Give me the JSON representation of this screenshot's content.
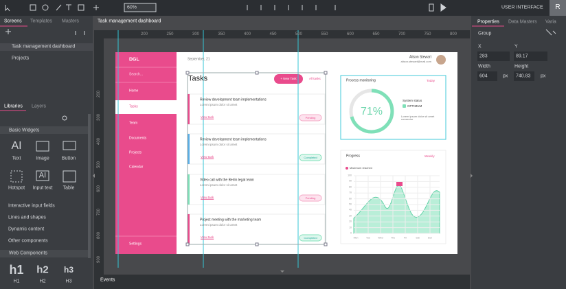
{
  "toolbar": {
    "zoom": "60%",
    "mode": "USER INTERFACE",
    "user_initial": "R"
  },
  "left_panel": {
    "tabs": [
      "Screens",
      "Templates",
      "Masters"
    ],
    "screens": [
      "Task management dashboard",
      "Projects"
    ],
    "library_tabs": [
      "Libraries",
      "Layers"
    ],
    "basic_widgets": {
      "title": "Basic Widgets",
      "items": [
        "Text",
        "Image",
        "Button",
        "Hotspot",
        "Input text",
        "Table"
      ]
    },
    "sections": [
      "Interactive input fields",
      "Lines and shapes",
      "Dynamic content",
      "Other components"
    ],
    "web_components": {
      "title": "Web Components",
      "icons": [
        "h1",
        "h2",
        "h3"
      ],
      "items": [
        "H1",
        "H2",
        "H3"
      ]
    }
  },
  "canvas": {
    "tab": "Task management dashboard",
    "ruler_top": [
      "200",
      "250",
      "300",
      "350",
      "400",
      "450",
      "500",
      "550",
      "600",
      "650",
      "700",
      "750",
      "800"
    ],
    "ruler_left": [
      "200",
      "300",
      "400",
      "500",
      "600",
      "700",
      "800",
      "900"
    ]
  },
  "app": {
    "brand": "DGL",
    "search": "Search...",
    "nav": [
      "Home",
      "Tasks",
      "Team",
      "Documents",
      "Projects",
      "Calendar"
    ],
    "settings": "Settings",
    "date": "September, 21",
    "user_name": "Alison Stewart",
    "user_email": "alison.stewart@mail.com",
    "tasks_title": "Tasks",
    "new_task": "+ New Task",
    "filter": "All tasks",
    "tasks": [
      {
        "title": "Review development team implementations",
        "text": "Lorem ipsum dolor sit amet",
        "link": "View task",
        "status": "Pending"
      },
      {
        "title": "Review development team implementations",
        "text": "Lorem ipsum dolor sit amet",
        "link": "View task",
        "status": "Completed"
      },
      {
        "title": "Video call with the Berlin legal team",
        "text": "Lorem ipsum dolor sit amet",
        "link": "View task",
        "status": "Pending"
      },
      {
        "title": "Project meeting with the marketing team",
        "text": "Lorem ipsum dolor sit amet",
        "link": "View task",
        "status": "Completed"
      }
    ],
    "process": {
      "title": "Process monitoring",
      "period": "Today",
      "percent": "71%",
      "status_label": "System status",
      "status": "OPTIMUM",
      "text": "Lorem ipsum dolor sit amet consectur"
    },
    "progress": {
      "title": "Progress",
      "period": "Weekly",
      "legend": "Maximum reached",
      "yticks": [
        "100",
        "90",
        "80",
        "70",
        "60",
        "50",
        "40",
        "30",
        "20",
        "10",
        "0"
      ],
      "days": [
        "Mon",
        "Tue",
        "Wed",
        "Thu",
        "Fri",
        "Sat",
        "Sun"
      ]
    }
  },
  "events": "Events",
  "right_panel": {
    "tabs": [
      "Properties",
      "Data Masters",
      "Varia"
    ],
    "group": "Group",
    "x_label": "X",
    "y_label": "Y",
    "x": "283",
    "y": "89.17",
    "width_label": "Width",
    "height_label": "Height",
    "width": "604",
    "width_unit": "px",
    "height": "740.83",
    "height_unit": "px"
  }
}
